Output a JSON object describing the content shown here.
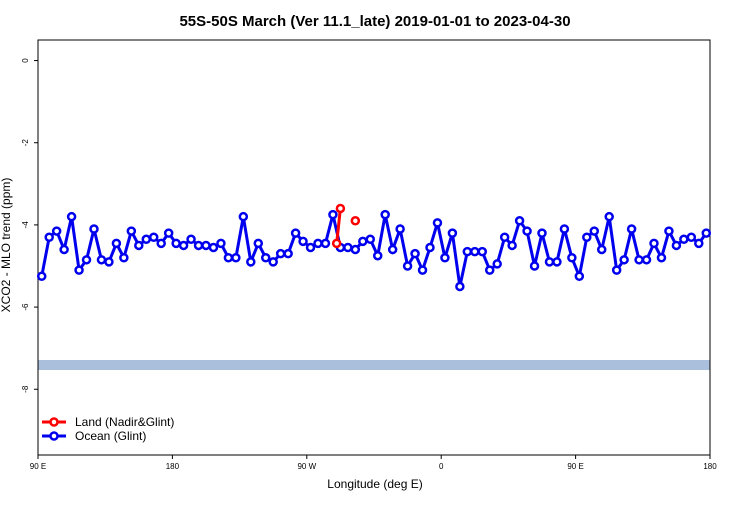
{
  "chart_data": {
    "type": "line",
    "title": "55S-50S March (Ver 11.1_late)   2019-01-01 to 2023-04-30",
    "x_label": "Longitude (deg E)",
    "y_label": "XCO2 - MLO trend (ppm)",
    "xlim": [
      90,
      540
    ],
    "ylim": [
      -9.6,
      0.5
    ],
    "xticks": [
      {
        "value": 90,
        "label": "90 E"
      },
      180,
      {
        "value": 270,
        "label": "90 W"
      },
      {
        "value": 360,
        "label": "0"
      },
      {
        "value": 450,
        "label": "90 E"
      },
      {
        "value": 540,
        "label": "180"
      }
    ],
    "yticks": [
      0,
      -2,
      -4,
      -6,
      -8
    ],
    "legend": "bottom-left",
    "series": [
      {
        "name": "Land (Nadir&Glint)",
        "color": "#ff0000",
        "x": [
          290,
          292.5,
          297.5,
          302.5
        ],
        "values": [
          -4.45,
          -3.6,
          null,
          -3.9
        ]
      },
      {
        "name": "Ocean (Glint)",
        "color": "#0000ee",
        "x": [
          92.5,
          97.5,
          102.5,
          107.5,
          112.5,
          117.5,
          122.5,
          127.5,
          132.5,
          137.5,
          142.5,
          147.5,
          152.5,
          157.5,
          162.5,
          167.5,
          172.5,
          177.5,
          182.5,
          187.5,
          192.5,
          197.5,
          202.5,
          207.5,
          212.5,
          217.5,
          222.5,
          227.5,
          232.5,
          237.5,
          242.5,
          247.5,
          252.5,
          257.5,
          262.5,
          267.5,
          272.5,
          277.5,
          282.5,
          287.5,
          292.5,
          297.5,
          302.5,
          307.5,
          312.5,
          317.5,
          322.5,
          327.5,
          332.5,
          337.5,
          342.5,
          347.5,
          352.5,
          357.5,
          362.5,
          367.5,
          372.5,
          377.5,
          382.5,
          387.5,
          392.5,
          397.5,
          402.5,
          407.5,
          412.5,
          417.5,
          422.5,
          427.5,
          432.5,
          437.5,
          442.5,
          447.5,
          452.5,
          457.5,
          462.5,
          467.5,
          472.5,
          477.5,
          482.5,
          487.5,
          492.5,
          497.5,
          502.5,
          507.5,
          512.5,
          517.5,
          522.5,
          527.5,
          532.5,
          537.5
        ],
        "values": [
          -5.25,
          -4.3,
          -4.15,
          -4.6,
          -3.8,
          -5.1,
          -4.85,
          -4.1,
          -4.85,
          -4.9,
          -4.45,
          -4.8,
          -4.15,
          -4.5,
          -4.35,
          -4.3,
          -4.45,
          -4.2,
          -4.45,
          -4.5,
          -4.35,
          -4.5,
          -4.5,
          -4.55,
          -4.45,
          -4.8,
          -4.8,
          -3.8,
          -4.9,
          -4.45,
          -4.8,
          -4.9,
          -4.7,
          -4.7,
          -4.2,
          -4.4,
          -4.55,
          -4.45,
          -4.45,
          -3.75,
          -4.55,
          -4.55,
          -4.6,
          -4.4,
          -4.35,
          -4.75,
          -3.75,
          -4.6,
          -4.1,
          -5.0,
          -4.7,
          -5.1,
          -4.55,
          -3.95,
          -4.8,
          -4.2,
          -5.5,
          -4.65,
          -4.65,
          -4.65,
          -5.1,
          -4.95,
          -4.3,
          -4.5,
          -3.9,
          -4.15,
          -5.0,
          -4.2,
          -4.9,
          -4.9,
          -4.1,
          -4.8,
          -5.25,
          -4.3,
          -4.15,
          -4.6,
          -3.8,
          -5.1,
          -4.85,
          -4.1,
          -4.85,
          -4.85,
          -4.45,
          -4.8,
          -4.15,
          -4.5,
          -4.35,
          -4.3,
          -4.45,
          -4.2
        ]
      }
    ]
  }
}
